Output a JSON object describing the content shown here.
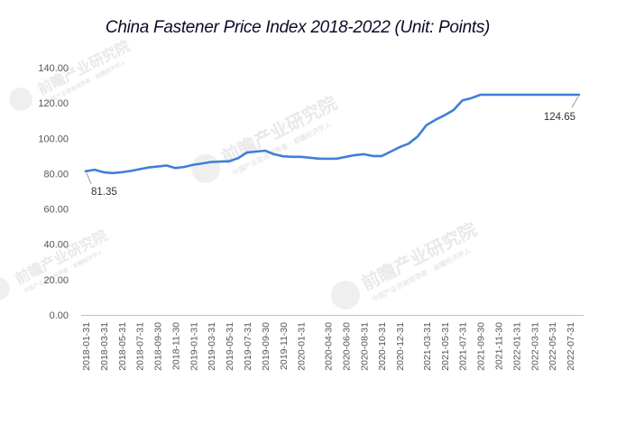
{
  "chart_data": {
    "type": "line",
    "title": "China Fastener Price Index 2018-2022 (Unit: Points)",
    "xlabel": "",
    "ylabel": "",
    "ylim": [
      0,
      140
    ],
    "y_ticks": [
      "0.00",
      "20.00",
      "40.00",
      "60.00",
      "80.00",
      "100.00",
      "120.00",
      "140.00"
    ],
    "grid": false,
    "legend": "none",
    "line_color": "#3f7fd9",
    "x": [
      "2018-01-31",
      "2018-02-28",
      "2018-03-31",
      "2018-04-30",
      "2018-05-31",
      "2018-06-30",
      "2018-07-31",
      "2018-08-31",
      "2018-09-30",
      "2018-10-31",
      "2018-11-30",
      "2018-12-31",
      "2019-01-31",
      "2019-02-28",
      "2019-03-31",
      "2019-04-30",
      "2019-05-31",
      "2019-06-30",
      "2019-07-31",
      "2019-08-31",
      "2019-09-30",
      "2019-10-31",
      "2019-11-30",
      "2019-12-31",
      "2020-01-31",
      "2020-02-29",
      "2020-03-31",
      "2020-04-30",
      "2020-05-31",
      "2020-06-30",
      "2020-07-31",
      "2020-08-31",
      "2020-09-30",
      "2020-10-31",
      "2020-11-30",
      "2020-12-31",
      "2021-01-31",
      "2021-02-28",
      "2021-03-31",
      "2021-04-30",
      "2021-05-31",
      "2021-06-30",
      "2021-07-31",
      "2021-08-31",
      "2021-09-30",
      "2021-10-31",
      "2021-11-30",
      "2021-12-31",
      "2022-01-31",
      "2022-02-28",
      "2022-03-31",
      "2022-04-30",
      "2022-05-31",
      "2022-06-30",
      "2022-07-31",
      "2022-08-31"
    ],
    "x_tick_labels": [
      "2018-01-31",
      "2018-03-31",
      "2018-05-31",
      "2018-07-31",
      "2018-09-30",
      "2018-11-30",
      "2019-01-31",
      "2019-03-31",
      "2019-05-31",
      "2019-07-31",
      "2019-09-30",
      "2019-11-30",
      "2020-01-31",
      "2020-04-30",
      "2020-06-30",
      "2020-08-31",
      "2020-10-31",
      "2020-12-31",
      "2021-03-31",
      "2021-05-31",
      "2021-07-31",
      "2021-09-30",
      "2021-11-30",
      "2022-01-31",
      "2022-03-31",
      "2022-05-31",
      "2022-07-31"
    ],
    "series": [
      {
        "values": [
          81.35,
          82.2,
          80.8,
          80.3,
          80.8,
          81.5,
          82.5,
          83.5,
          84.0,
          84.6,
          83.2,
          83.8,
          85.0,
          85.8,
          86.6,
          86.8,
          87.0,
          88.8,
          92.0,
          92.5,
          93.0,
          91.0,
          89.8,
          89.5,
          89.5,
          89.0,
          88.5,
          88.4,
          88.5,
          89.5,
          90.5,
          91.0,
          90.0,
          90.0,
          92.5,
          95.0,
          97.0,
          101.0,
          107.5,
          110.5,
          113.0,
          116.0,
          121.5,
          122.8,
          124.65,
          124.65,
          124.65,
          124.65,
          124.65,
          124.65,
          124.65,
          124.65,
          124.65,
          124.65,
          124.65,
          124.65
        ]
      }
    ],
    "annotations": [
      {
        "text": "81.35",
        "point_index": 0
      },
      {
        "text": "124.65",
        "point_index": 55
      }
    ],
    "watermark": {
      "brand": "前瞻产业研究院",
      "sub": "中国产业咨询领导者 · 前瞻经济学人"
    }
  }
}
